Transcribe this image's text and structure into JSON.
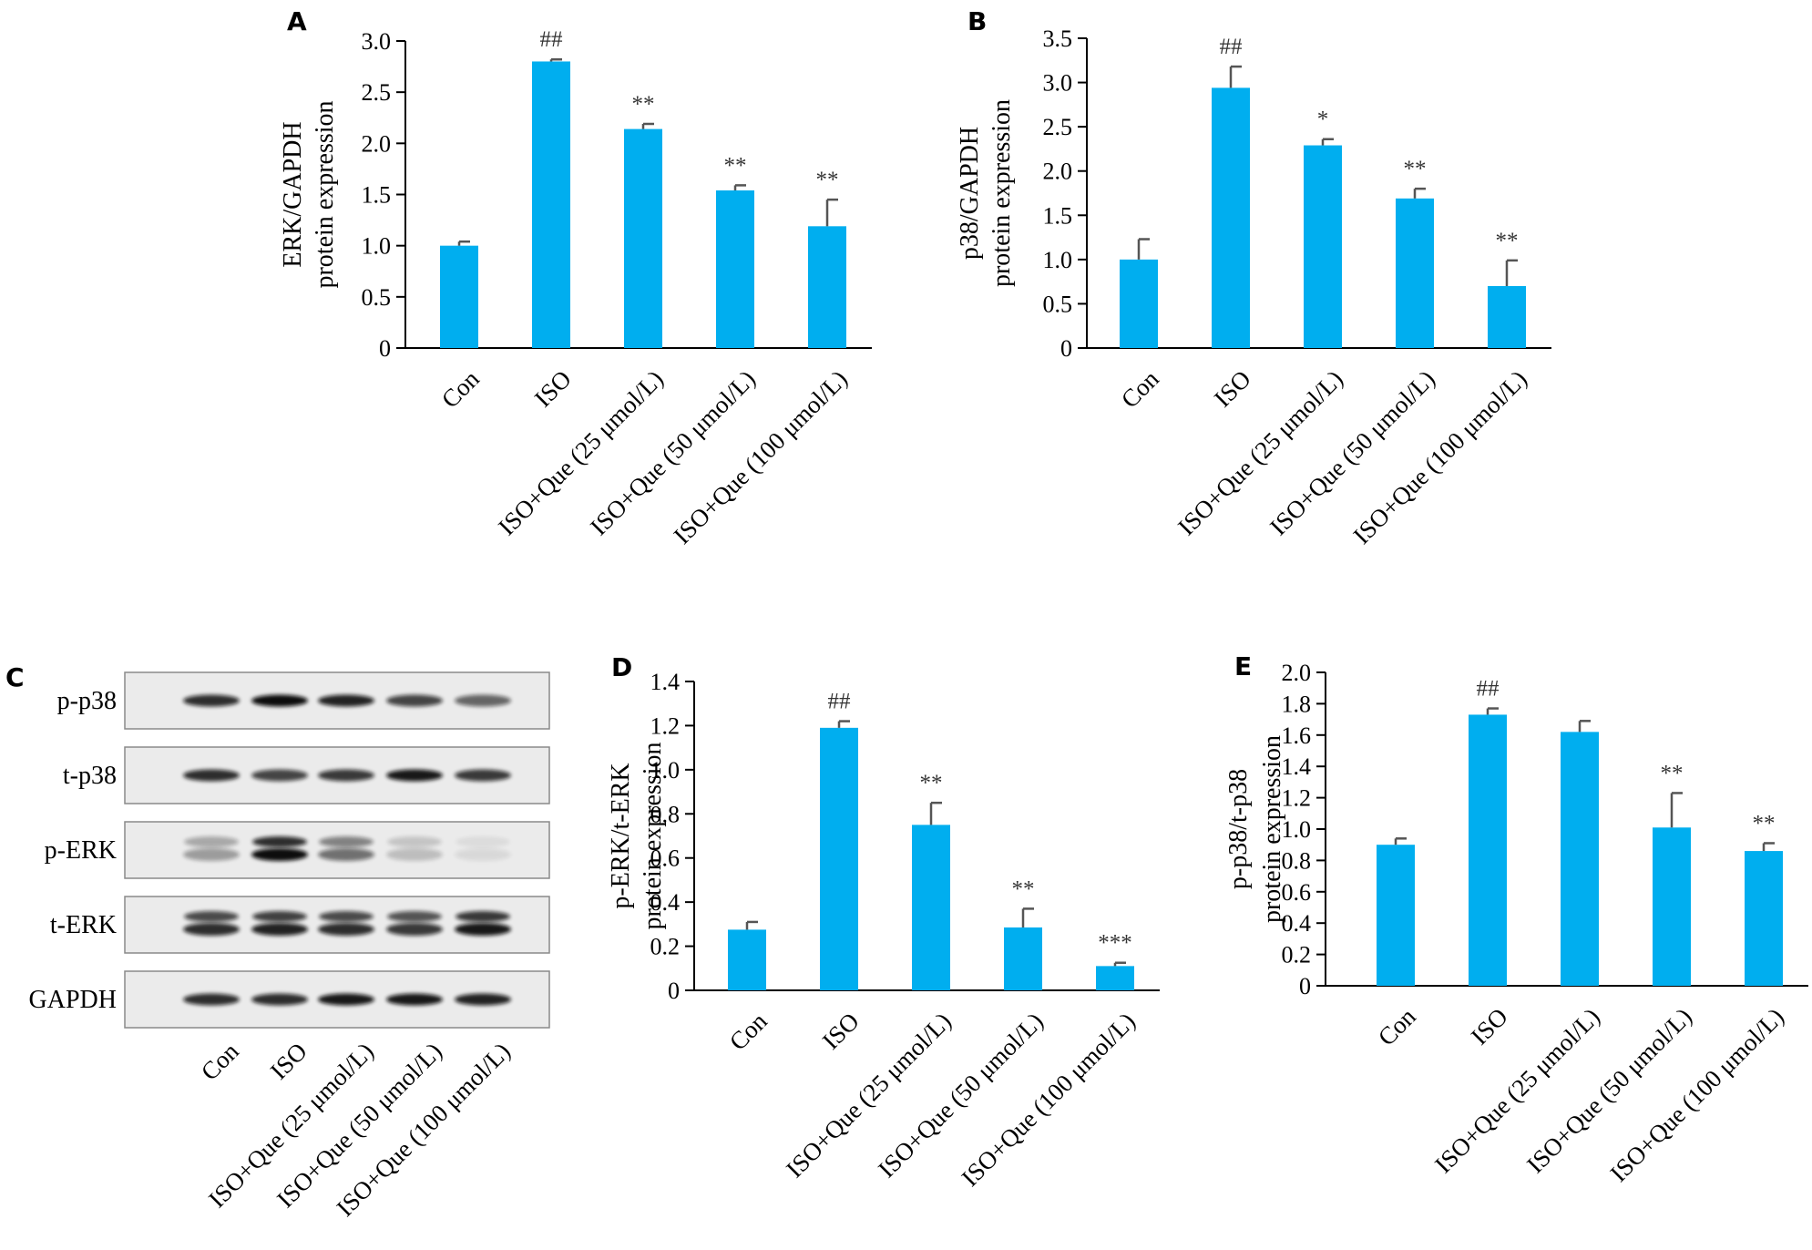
{
  "blot": {
    "letter": "C",
    "rows": [
      {
        "label": "p-p38",
        "intensity": [
          0.85,
          1.0,
          0.9,
          0.75,
          0.6
        ],
        "double": false
      },
      {
        "label": "t-p38",
        "intensity": [
          0.85,
          0.75,
          0.8,
          0.95,
          0.8
        ],
        "double": false
      },
      {
        "label": "p-ERK",
        "intensity": [
          0.35,
          1.0,
          0.55,
          0.2,
          0.08
        ],
        "double": true
      },
      {
        "label": "t-ERK",
        "intensity": [
          0.85,
          0.9,
          0.85,
          0.8,
          0.95
        ],
        "double": true
      },
      {
        "label": "GAPDH",
        "intensity": [
          0.85,
          0.85,
          0.95,
          0.95,
          0.9
        ],
        "double": false
      }
    ],
    "categories": [
      "Con",
      "ISO",
      "ISO+Que (25 μmol/L)",
      "ISO+Que (50 μmol/L)",
      "ISO+Que (100 μmol/L)"
    ]
  },
  "chart_data": [
    {
      "letter": "A",
      "type": "bar",
      "ylabel": [
        "ERK/GAPDH",
        "protein expression"
      ],
      "categories": [
        "Con",
        "ISO",
        "ISO+Que (25 μmol/L)",
        "ISO+Que (50 μmol/L)",
        "ISO+Que (100 μmol/L)"
      ],
      "values": [
        1.0,
        2.8,
        2.14,
        1.54,
        1.19
      ],
      "errors": [
        0.04,
        0.02,
        0.05,
        0.05,
        0.26
      ],
      "significance": [
        "",
        "##",
        "**",
        "**",
        "**"
      ],
      "ylim": [
        0,
        3.0
      ],
      "yticks": [
        0,
        0.5,
        1.0,
        1.5,
        2.0,
        2.5,
        3.0
      ],
      "yticklabels": [
        "0",
        "0.5",
        "1.0",
        "1.5",
        "2.0",
        "2.5",
        "3.0"
      ],
      "bar_color": "#00aeef"
    },
    {
      "letter": "B",
      "type": "bar",
      "ylabel": [
        "p38/GAPDH",
        "protein expression"
      ],
      "categories": [
        "Con",
        "ISO",
        "ISO+Que (25 μmol/L)",
        "ISO+Que (50 μmol/L)",
        "ISO+Que (100 μmol/L)"
      ],
      "values": [
        1.0,
        2.94,
        2.29,
        1.69,
        0.7
      ],
      "errors": [
        0.23,
        0.24,
        0.07,
        0.11,
        0.29
      ],
      "significance": [
        "",
        "##",
        "*",
        "**",
        "**"
      ],
      "ylim": [
        0,
        3.5
      ],
      "yticks": [
        0,
        0.5,
        1.0,
        1.5,
        2.0,
        2.5,
        3.0,
        3.5
      ],
      "yticklabels": [
        "0",
        "0.5",
        "1.0",
        "1.5",
        "2.0",
        "2.5",
        "3.0",
        "3.5"
      ],
      "bar_color": "#00aeef"
    },
    {
      "letter": "D",
      "type": "bar",
      "ylabel": [
        "p-ERK/t-ERK",
        "protein expression"
      ],
      "categories": [
        "Con",
        "ISO",
        "ISO+Que (25 μmol/L)",
        "ISO+Que (50 μmol/L)",
        "ISO+Que (100 μmol/L)"
      ],
      "values": [
        0.275,
        1.19,
        0.75,
        0.285,
        0.11
      ],
      "errors": [
        0.035,
        0.03,
        0.1,
        0.085,
        0.015
      ],
      "significance": [
        "",
        "##",
        "**",
        "**",
        "***"
      ],
      "ylim": [
        0,
        1.4
      ],
      "yticks": [
        0,
        0.2,
        0.4,
        0.6,
        0.8,
        1.0,
        1.2,
        1.4
      ],
      "yticklabels": [
        "0",
        "0.2",
        "0.4",
        "0.6",
        "0.8",
        "1.0",
        "1.2",
        "1.4"
      ],
      "bar_color": "#00aeef"
    },
    {
      "letter": "E",
      "type": "bar",
      "ylabel": [
        "p-p38/t-p38",
        "protein expression"
      ],
      "categories": [
        "Con",
        "ISO",
        "ISO+Que (25 μmol/L)",
        "ISO+Que (50 μmol/L)",
        "ISO+Que (100 μmol/L)"
      ],
      "values": [
        0.9,
        1.73,
        1.62,
        1.01,
        0.86
      ],
      "errors": [
        0.04,
        0.04,
        0.07,
        0.22,
        0.05
      ],
      "significance": [
        "",
        "##",
        "",
        "**",
        "**"
      ],
      "ylim": [
        0,
        2.0
      ],
      "yticks": [
        0,
        0.2,
        0.4,
        0.6,
        0.8,
        1.0,
        1.2,
        1.4,
        1.6,
        1.8,
        2.0
      ],
      "yticklabels": [
        "0",
        "0.2",
        "0.4",
        "0.6",
        "0.8",
        "1.0",
        "1.2",
        "1.4",
        "1.6",
        "1.8",
        "2.0"
      ],
      "bar_color": "#00aeef"
    }
  ]
}
